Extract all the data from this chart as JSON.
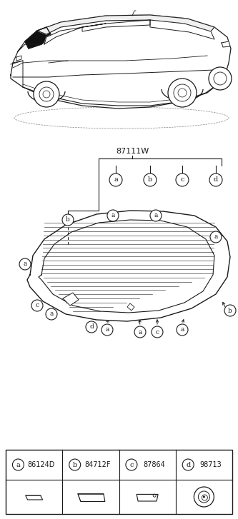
{
  "bg_color": "#ffffff",
  "line_color": "#1a1a1a",
  "car_label": "87111W",
  "part_codes": [
    "86124D",
    "84712F",
    "87864",
    "98713"
  ],
  "part_letters": [
    "a",
    "b",
    "c",
    "d"
  ],
  "fig_width": 3.33,
  "fig_height": 7.27,
  "dpi": 100
}
